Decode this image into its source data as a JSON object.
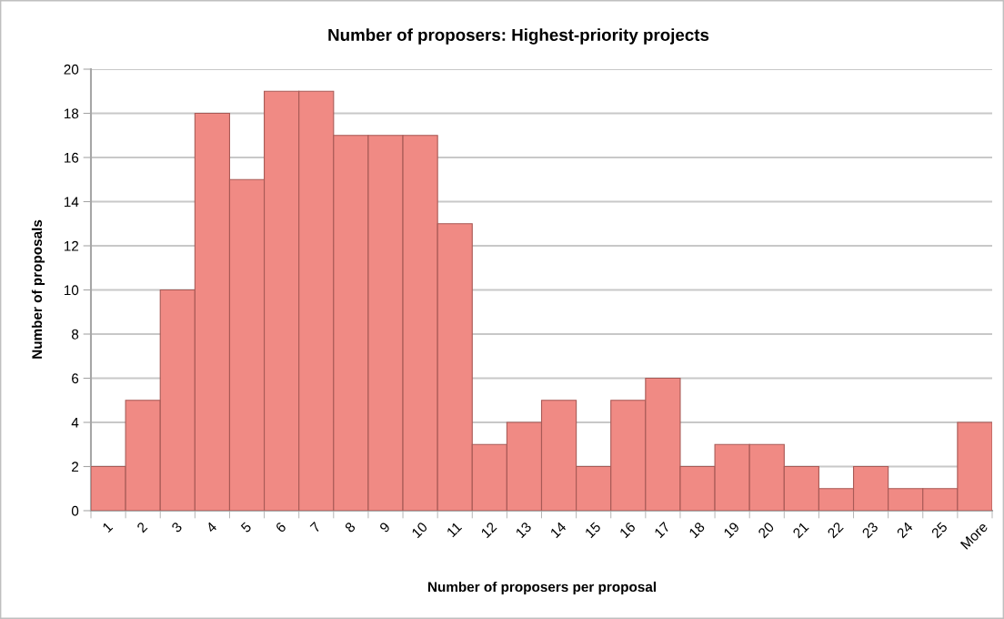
{
  "chart_data": {
    "type": "bar",
    "title": "Number of proposers: Highest-priority projects",
    "xlabel": "Number of proposers per proposal",
    "ylabel": "Number of proposals",
    "categories": [
      "1",
      "2",
      "3",
      "4",
      "5",
      "6",
      "7",
      "8",
      "9",
      "10",
      "11",
      "12",
      "13",
      "14",
      "15",
      "16",
      "17",
      "18",
      "19",
      "20",
      "21",
      "22",
      "23",
      "24",
      "25",
      "More"
    ],
    "values": [
      2,
      5,
      10,
      18,
      15,
      19,
      19,
      17,
      17,
      17,
      13,
      3,
      4,
      5,
      2,
      5,
      6,
      2,
      3,
      3,
      2,
      1,
      2,
      1,
      1,
      4
    ],
    "color": "#f08a84",
    "ylim": [
      0,
      20
    ],
    "yticks": [
      0,
      2,
      4,
      6,
      8,
      10,
      12,
      14,
      16,
      18,
      20
    ],
    "grid": "y"
  }
}
